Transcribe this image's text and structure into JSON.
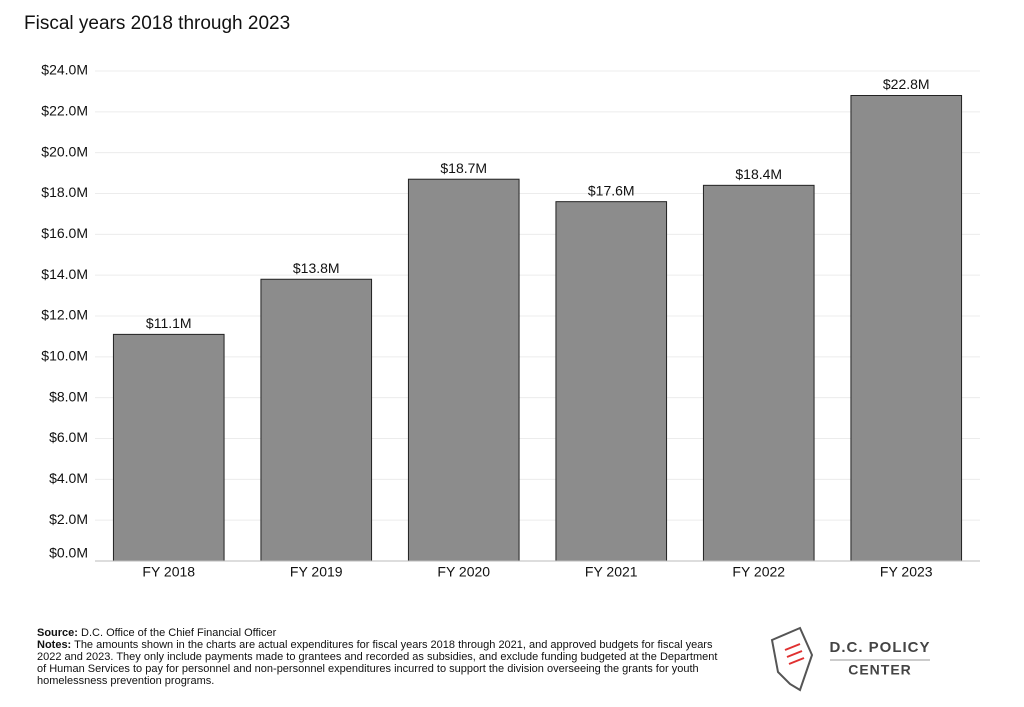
{
  "chart_data": {
    "type": "bar",
    "title": "Fiscal years 2018 through 2023",
    "categories": [
      "FY 2018",
      "FY 2019",
      "FY 2020",
      "FY 2021",
      "FY 2022",
      "FY 2023"
    ],
    "values": [
      11.1,
      13.8,
      18.7,
      17.6,
      18.4,
      22.8
    ],
    "value_labels": [
      "$11.1M",
      "$13.8M",
      "$18.7M",
      "$17.6M",
      "$18.4M",
      "$22.8M"
    ],
    "color": "#8c8c8c",
    "ylim": [
      0,
      24
    ],
    "yticks": [
      {
        "value": 0,
        "label": "$0.0M"
      },
      {
        "value": 2,
        "label": "$2.0M"
      },
      {
        "value": 4,
        "label": "$4.0M"
      },
      {
        "value": 6,
        "label": "$6.0M"
      },
      {
        "value": 8,
        "label": "$8.0M"
      },
      {
        "value": 10,
        "label": "$10.0M"
      },
      {
        "value": 12,
        "label": "$12.0M"
      },
      {
        "value": 14,
        "label": "$14.0M"
      },
      {
        "value": 16,
        "label": "$16.0M"
      },
      {
        "value": 18,
        "label": "$18.0M"
      },
      {
        "value": 20,
        "label": "$20.0M"
      },
      {
        "value": 22,
        "label": "$22.0M"
      },
      {
        "value": 24,
        "label": "$24.0M"
      }
    ],
    "grid": true
  },
  "footer": {
    "source_label": "Source:",
    "source": "D.C. Office of the Chief Financial Officer",
    "notes_label": "Notes:",
    "notes": "The amounts shown in the charts are actual expenditures for fiscal years 2018 through 2021, and approved budgets for fiscal years 2022 and 2023. They only include payments made to grantees and recorded as subsidies, and exclude funding budgeted at the Department of Human Services to pay for personnel and non-personnel expenditures incurred to support the division overseeing the grants for youth homelessness prevention programs.",
    "logo_line1": "D.C. POLICY",
    "logo_line2": "CENTER"
  }
}
